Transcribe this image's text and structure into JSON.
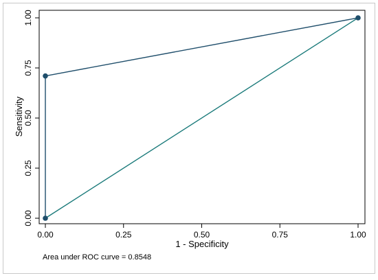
{
  "chart_data": {
    "type": "line",
    "xlabel": "1 - Specificity",
    "ylabel": "Sensitivity",
    "xlim": [
      0,
      1
    ],
    "ylim": [
      0,
      1
    ],
    "x_ticks": [
      "0.00",
      "0.25",
      "0.50",
      "0.75",
      "1.00"
    ],
    "y_ticks": [
      "0.00",
      "0.25",
      "0.50",
      "0.75",
      "1.00"
    ],
    "tick_values": [
      0,
      0.25,
      0.5,
      0.75,
      1
    ],
    "grid": false,
    "legend": "none",
    "series": [
      {
        "points": [
          [
            0,
            0
          ],
          [
            0,
            0.71
          ],
          [
            1,
            1
          ]
        ],
        "color": "#1f4e6b",
        "markers": true
      },
      {
        "points": [
          [
            0,
            0
          ],
          [
            1,
            1
          ]
        ],
        "color": "#1a7a7a",
        "markers": false
      }
    ],
    "note": "Area under ROC curve = 0.8548"
  }
}
